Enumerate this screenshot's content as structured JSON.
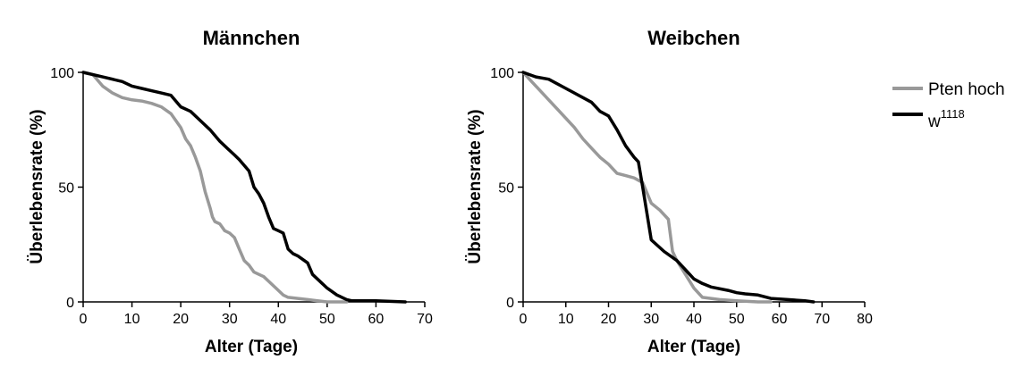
{
  "chart_data": [
    {
      "type": "line",
      "title": "Männchen",
      "xlabel": "Alter (Tage)",
      "ylabel": "Überlebensrate (%)",
      "xlim": [
        0,
        70
      ],
      "ylim": [
        0,
        100
      ],
      "xticks": [
        0,
        10,
        20,
        30,
        40,
        50,
        60,
        70
      ],
      "yticks": [
        0,
        50,
        100
      ],
      "grid": false,
      "series": [
        {
          "name": "Pten hoch",
          "color": "#999999",
          "x": [
            0,
            2,
            4,
            6,
            8,
            10,
            12,
            14,
            16,
            18,
            20,
            21,
            22,
            23,
            24,
            25,
            26,
            26.5,
            27,
            28,
            29,
            30,
            31,
            32,
            33,
            34,
            35,
            36,
            37,
            38,
            40,
            41,
            42,
            44,
            46,
            48,
            50,
            54
          ],
          "y": [
            100,
            99,
            94,
            91,
            89,
            88,
            87.5,
            86.5,
            85,
            82,
            76,
            71,
            68,
            63,
            57,
            48,
            41,
            37,
            35,
            34,
            31,
            30,
            28,
            23,
            18,
            16,
            13,
            12,
            11,
            9,
            5,
            3,
            2,
            1.5,
            1,
            0.5,
            0,
            0
          ]
        },
        {
          "name": "w1118",
          "color": "#000000",
          "x": [
            0,
            4,
            8,
            10,
            12,
            14,
            16,
            18,
            20,
            22,
            24,
            26,
            28,
            30,
            31,
            32,
            34,
            35,
            36,
            37,
            38,
            39,
            40,
            41,
            42,
            43,
            44,
            46,
            47,
            48,
            50,
            52,
            54,
            55,
            60,
            66
          ],
          "y": [
            100,
            98,
            96,
            94,
            93,
            92,
            91,
            90,
            85,
            83,
            79,
            75,
            70,
            66,
            64,
            62,
            57,
            50,
            47,
            43,
            37,
            32,
            31,
            30,
            23,
            21,
            20,
            17,
            12,
            10,
            6,
            3,
            1,
            0.5,
            0.5,
            0
          ]
        }
      ]
    },
    {
      "type": "line",
      "title": "Weibchen",
      "xlabel": "Alter (Tage)",
      "ylabel": "Überlebensrate (%)",
      "xlim": [
        0,
        80
      ],
      "ylim": [
        0,
        100
      ],
      "xticks": [
        0,
        10,
        20,
        30,
        40,
        50,
        60,
        70,
        80
      ],
      "yticks": [
        0,
        50,
        100
      ],
      "grid": false,
      "series": [
        {
          "name": "Pten hoch",
          "color": "#999999",
          "x": [
            0,
            2,
            4,
            6,
            8,
            10,
            12,
            14,
            16,
            18,
            20,
            22,
            24,
            26,
            28,
            30,
            32,
            34,
            35,
            36,
            38,
            40,
            42,
            46,
            50,
            55,
            58
          ],
          "y": [
            100,
            96,
            92,
            88,
            84,
            80,
            76,
            71,
            67,
            63,
            60,
            56,
            55,
            54,
            52,
            43,
            40,
            36,
            22,
            18,
            12,
            6,
            2,
            1,
            0.5,
            0,
            0
          ]
        },
        {
          "name": "w1118",
          "color": "#000000",
          "x": [
            0,
            3,
            6,
            10,
            14,
            16,
            18,
            20,
            22,
            24,
            26,
            27,
            28,
            30,
            33,
            36,
            38,
            40,
            42,
            44,
            48,
            50,
            52,
            55,
            58,
            62,
            66,
            68
          ],
          "y": [
            100,
            98,
            97,
            93,
            89,
            87,
            83,
            81,
            75,
            68,
            63,
            61,
            50,
            27,
            22,
            18,
            14,
            10,
            8,
            6.5,
            5,
            4,
            3.5,
            3,
            1.5,
            1,
            0.5,
            0
          ]
        }
      ]
    }
  ],
  "legend": {
    "position": "right",
    "items": [
      {
        "label": "Pten hoch",
        "superscript": "",
        "color": "#999999"
      },
      {
        "label": "w",
        "superscript": "1118",
        "color": "#000000"
      }
    ]
  }
}
